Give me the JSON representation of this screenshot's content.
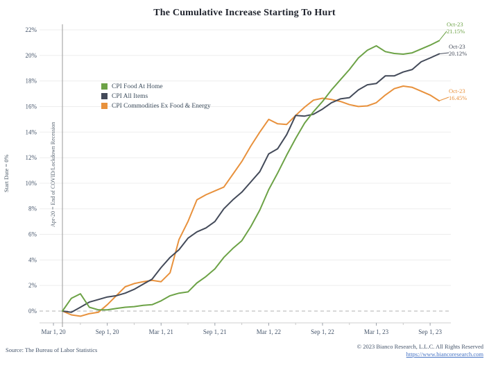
{
  "title": "The Cumulative Increase Starting To Hurt",
  "y_axis_label": "Start Date = 0%",
  "event_line_label": "Apr-20 = End of COVID/Lockdown Recession",
  "footer": {
    "source": "Source: The Bureau of Labor Statistics",
    "copyright": "© 2023 Bianco Research, L.L.C. All Rights Reserved",
    "link": "https://www.biancoresearch.com",
    "link_color": "#4472c4"
  },
  "chart_data": {
    "type": "line",
    "title": "The Cumulative Increase Starting To Hurt",
    "x_unit": "month",
    "months": [
      "Apr-20",
      "May-20",
      "Jun-20",
      "Jul-20",
      "Aug-20",
      "Sep-20",
      "Oct-20",
      "Nov-20",
      "Dec-20",
      "Jan-21",
      "Feb-21",
      "Mar-21",
      "Apr-21",
      "May-21",
      "Jun-21",
      "Jul-21",
      "Aug-21",
      "Sep-21",
      "Oct-21",
      "Nov-21",
      "Dec-21",
      "Jan-22",
      "Feb-22",
      "Mar-22",
      "Apr-22",
      "May-22",
      "Jun-22",
      "Jul-22",
      "Aug-22",
      "Sep-22",
      "Oct-22",
      "Nov-22",
      "Dec-22",
      "Jan-23",
      "Feb-23",
      "Mar-23",
      "Apr-23",
      "May-23",
      "Jun-23",
      "Jul-23",
      "Aug-23",
      "Sep-23",
      "Oct-23"
    ],
    "ylim": [
      -0.9,
      22.5
    ],
    "grid": true,
    "zero_line_dashed": true,
    "y_ticks": [
      {
        "value": 0,
        "label": "0%"
      },
      {
        "value": 2,
        "label": "2%"
      },
      {
        "value": 4,
        "label": "4%"
      },
      {
        "value": 6,
        "label": "6%"
      },
      {
        "value": 8,
        "label": "8%"
      },
      {
        "value": 10,
        "label": "10%"
      },
      {
        "value": 12,
        "label": "12%"
      },
      {
        "value": 14,
        "label": "14%"
      },
      {
        "value": 16,
        "label": "16%"
      },
      {
        "value": 18,
        "label": "18%"
      },
      {
        "value": 20,
        "label": "20%"
      },
      {
        "value": 22,
        "label": "22%"
      }
    ],
    "x_ticks": [
      {
        "month_index": -1,
        "label": "Mar 1, 20"
      },
      {
        "month_index": 5,
        "label": "Sep 1, 20"
      },
      {
        "month_index": 11,
        "label": "Mar 1, 21"
      },
      {
        "month_index": 17,
        "label": "Sep 1, 21"
      },
      {
        "month_index": 23,
        "label": "Mar 1, 22"
      },
      {
        "month_index": 29,
        "label": "Sep 1, 22"
      },
      {
        "month_index": 35,
        "label": "Mar 1, 23"
      },
      {
        "month_index": 41,
        "label": "Sep 1, 23"
      }
    ],
    "series": [
      {
        "name": "CPI Food At Home",
        "color": "#6ca246",
        "annotation": {
          "label": "Oct-23",
          "value": "21.15%"
        },
        "values": [
          0,
          1.0,
          1.35,
          0.3,
          0.1,
          0.1,
          0.2,
          0.3,
          0.35,
          0.45,
          0.5,
          0.8,
          1.2,
          1.4,
          1.5,
          2.2,
          2.7,
          3.3,
          4.2,
          4.9,
          5.5,
          6.6,
          7.9,
          9.5,
          10.8,
          12.2,
          13.5,
          14.7,
          15.6,
          16.4,
          17.3,
          18.1,
          18.9,
          19.8,
          20.4,
          20.75,
          20.3,
          20.15,
          20.1,
          20.2,
          20.5,
          20.8,
          21.15
        ]
      },
      {
        "name": "CPI All Items",
        "color": "#434a59",
        "annotation": {
          "label": "Oct-23",
          "value": "20.12%"
        },
        "values": [
          0,
          -0.1,
          0.3,
          0.7,
          0.9,
          1.1,
          1.2,
          1.4,
          1.7,
          2.1,
          2.5,
          3.4,
          4.2,
          4.8,
          5.7,
          6.2,
          6.5,
          7.0,
          8.0,
          8.7,
          9.3,
          10.1,
          10.9,
          12.3,
          12.7,
          13.8,
          15.3,
          15.25,
          15.4,
          15.8,
          16.3,
          16.6,
          16.7,
          17.3,
          17.7,
          17.8,
          18.4,
          18.4,
          18.7,
          18.9,
          19.5,
          19.8,
          20.12
        ]
      },
      {
        "name": "CPI Commodities Ex Food & Energy",
        "color": "#e8913c",
        "annotation": {
          "label": "Oct-23",
          "value": "16.45%"
        },
        "values": [
          0,
          -0.3,
          -0.4,
          -0.2,
          -0.1,
          0.5,
          1.2,
          1.9,
          2.15,
          2.3,
          2.4,
          2.3,
          3.0,
          5.6,
          7.0,
          8.7,
          9.1,
          9.4,
          9.7,
          10.7,
          11.7,
          12.9,
          14.0,
          15.0,
          14.65,
          14.6,
          15.3,
          15.95,
          16.5,
          16.65,
          16.55,
          16.4,
          16.15,
          16.0,
          16.05,
          16.3,
          16.9,
          17.4,
          17.6,
          17.5,
          17.2,
          16.9,
          16.45
        ]
      }
    ]
  }
}
